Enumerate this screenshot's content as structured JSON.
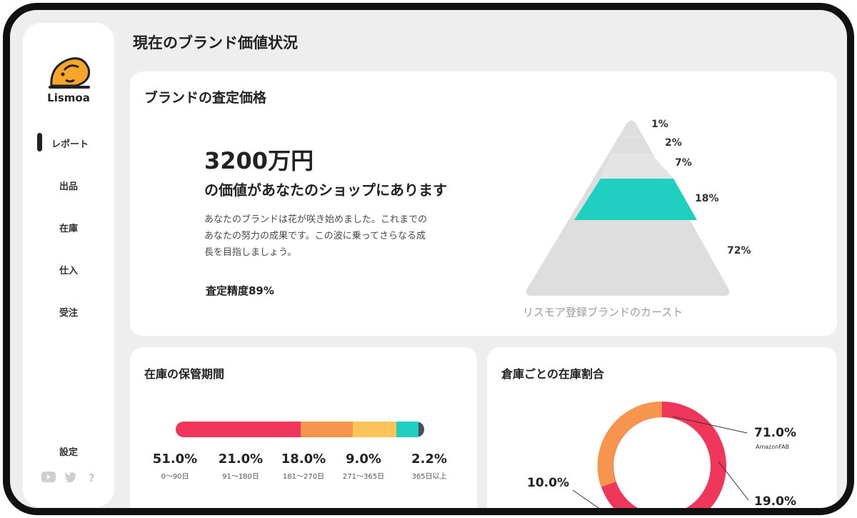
{
  "app": {
    "name": "Lismoa"
  },
  "sidebar": {
    "items": [
      {
        "label": "レポート",
        "active": true
      },
      {
        "label": "出品"
      },
      {
        "label": "在庫"
      },
      {
        "label": "仕入"
      },
      {
        "label": "受注"
      }
    ],
    "settings_label": "設定",
    "icons": [
      "youtube-icon",
      "twitter-icon",
      "help-icon"
    ],
    "help_glyph": "?"
  },
  "header": {
    "title": "現在のブランド価値状況"
  },
  "brand_card": {
    "title": "ブランドの査定価格",
    "value": "3200万円",
    "value_suffix": "の価値があなたのショップにあります",
    "description_lines": [
      "あなたのブランドは花が咲き始めました。これまでの",
      "あなたの努力の成果です。この波に乗ってさらなる成",
      "長を目指しましょう。"
    ],
    "accuracy": "査定精度89%",
    "pyramid": {
      "caption": "リスモア登録ブランドのカースト",
      "tiers": [
        {
          "label": "1%",
          "value": 1
        },
        {
          "label": "2%",
          "value": 2
        },
        {
          "label": "7%",
          "value": 7
        },
        {
          "label": "18%",
          "value": 18,
          "highlight": true
        },
        {
          "label": "72%",
          "value": 72
        }
      ],
      "colors": {
        "base": "#dedede",
        "highlight": "#1fcfbf"
      }
    }
  },
  "storage_card": {
    "title": "在庫の保管期間",
    "segments": [
      {
        "pct": "51.0%",
        "value": 51.0,
        "label": "0～90日",
        "color": "#f0365a"
      },
      {
        "pct": "21.0%",
        "value": 21.0,
        "label": "91～180日",
        "color": "#f7954f"
      },
      {
        "pct": "18.0%",
        "value": 18.0,
        "label": "181～270日",
        "color": "#fbc35a"
      },
      {
        "pct": "9.0%",
        "value": 9.0,
        "label": "271～365日",
        "color": "#1fcfbf"
      },
      {
        "pct": "2.2%",
        "value": 2.2,
        "label": "365日以上",
        "color": "#454d55"
      }
    ]
  },
  "warehouse_card": {
    "title": "倉庫ごとの在庫割合",
    "slices": [
      {
        "pct": "71.0%",
        "value": 71.0,
        "label": "AmazonFAB",
        "color": "#f0365a"
      },
      {
        "pct": "19.0%",
        "value": 19.0,
        "label": "",
        "color": "#f0365a"
      },
      {
        "pct": "10.0%",
        "value": 10.0,
        "label": "",
        "color": "#f7954f"
      }
    ]
  }
}
